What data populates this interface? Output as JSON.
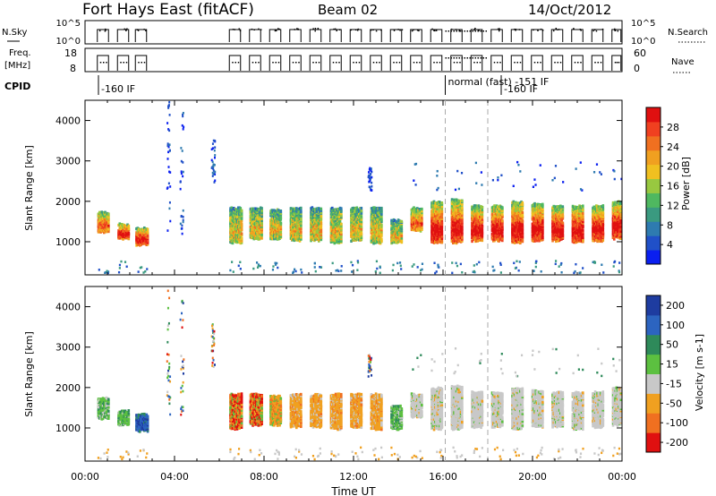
{
  "header": {
    "site": "Fort Hays East (fitACF)",
    "beam": "Beam 02",
    "date": "14/Oct/2012"
  },
  "status_panel": {
    "nsky_label": "N.Sky",
    "nsky_ticks": [
      "10^5",
      "10^0"
    ],
    "nsearch_label": "N.Search",
    "nsearch_ticks": [
      "10^5",
      "10^0"
    ],
    "freq_label_1": "Freq.",
    "freq_label_2": "[MHz]",
    "freq_ticks": [
      "18",
      "8"
    ],
    "nave_label": "Nave",
    "nave_ticks": [
      "60",
      "0"
    ],
    "cpid_label": "CPID",
    "cpid_segments": [
      {
        "text": "-160 IF",
        "start_hour": 0.6
      },
      {
        "text": "normal (fast) -151 IF",
        "start_hour": 16.1
      },
      {
        "text": "-160 IF",
        "start_hour": 18.6
      }
    ]
  },
  "dashed_lines_hours": [
    16.1,
    18.0
  ],
  "x_axis": {
    "label": "Time UT",
    "ticks": [
      "00:00",
      "04:00",
      "08:00",
      "12:00",
      "16:00",
      "20:00",
      "00:00"
    ],
    "range_hours": [
      0,
      24
    ]
  },
  "power_panel": {
    "ylabel": "Slant Range [km]",
    "yticks": [
      "1000",
      "2000",
      "3000",
      "4000"
    ],
    "colorbar_label": "Power [dB]",
    "colorbar_ticks": [
      "4",
      "8",
      "12",
      "16",
      "20",
      "24",
      "28"
    ],
    "colors": [
      "#0a1ff0",
      "#2050c8",
      "#2e7bb0",
      "#3a9a80",
      "#4fb860",
      "#98c840",
      "#f0c020",
      "#f0a020",
      "#f07020",
      "#f04020",
      "#e01010"
    ]
  },
  "velocity_panel": {
    "ylabel": "Slant Range [km]",
    "yticks": [
      "1000",
      "2000",
      "3000",
      "4000"
    ],
    "colorbar_label": "Velocity [m s-1]",
    "colorbar_ticks": [
      "200",
      "100",
      "50",
      "15",
      "-15",
      "-50",
      "-100",
      "-200"
    ],
    "colors": [
      "#1e3ca0",
      "#2c64c0",
      "#2e8a5a",
      "#5cc040",
      "#c8c8c8",
      "#f0a020",
      "#f07020",
      "#e01010"
    ]
  },
  "chart_data": {
    "type": "heatmap",
    "title": "Fort Hays East (fitACF)",
    "xlabel": "Time UT",
    "ylabel": "Slant Range [km]",
    "x_range_hours": [
      0,
      24
    ],
    "y_range_km": [
      180,
      4500
    ],
    "scan_blocks": [
      {
        "t0": 0.55,
        "t1": 1.05,
        "r0": 1250,
        "r1": 1750,
        "power": "mid-high",
        "velocity": "+15..+50"
      },
      {
        "t0": 1.45,
        "t1": 1.95,
        "r0": 1100,
        "r1": 1450,
        "power": "high",
        "velocity": "+15..+50"
      },
      {
        "t0": 2.25,
        "t1": 2.75,
        "r0": 950,
        "r1": 1350,
        "power": "high",
        "velocity": "+100"
      },
      {
        "t0": 6.45,
        "t1": 6.95,
        "r0": 1000,
        "r1": 1850,
        "power": "mid",
        "velocity": "-50..-200"
      },
      {
        "t0": 7.35,
        "t1": 7.85,
        "r0": 1100,
        "r1": 1850,
        "power": "mid",
        "velocity": "-50..-200"
      },
      {
        "t0": 8.25,
        "t1": 8.75,
        "r0": 1100,
        "r1": 1800,
        "power": "mid",
        "velocity": "-50..-100"
      },
      {
        "t0": 9.15,
        "t1": 9.65,
        "r0": 1050,
        "r1": 1850,
        "power": "mid",
        "velocity": "-50"
      },
      {
        "t0": 10.05,
        "t1": 10.55,
        "r0": 1050,
        "r1": 1850,
        "power": "mid",
        "velocity": "-50"
      },
      {
        "t0": 10.95,
        "t1": 11.45,
        "r0": 1000,
        "r1": 1850,
        "power": "mid",
        "velocity": "-50"
      },
      {
        "t0": 11.85,
        "t1": 12.35,
        "r0": 1050,
        "r1": 1850,
        "power": "mid",
        "velocity": "-50"
      },
      {
        "t0": 12.75,
        "t1": 13.25,
        "r0": 1000,
        "r1": 1850,
        "power": "mid",
        "velocity": "-50"
      },
      {
        "t0": 13.65,
        "t1": 14.15,
        "r0": 1000,
        "r1": 1550,
        "power": "mid",
        "velocity": "+15..+50"
      },
      {
        "t0": 14.55,
        "t1": 15.05,
        "r0": 1300,
        "r1": 1850,
        "power": "mid-high",
        "velocity": "~0"
      },
      {
        "t0": 15.45,
        "t1": 15.95,
        "r0": 1000,
        "r1": 2000,
        "power": "high",
        "velocity": "~0"
      },
      {
        "t0": 16.35,
        "t1": 16.85,
        "r0": 1000,
        "r1": 2050,
        "power": "high",
        "velocity": "~0"
      },
      {
        "t0": 17.25,
        "t1": 17.75,
        "r0": 1050,
        "r1": 1900,
        "power": "high",
        "velocity": "~0"
      },
      {
        "t0": 18.15,
        "t1": 18.65,
        "r0": 1050,
        "r1": 1900,
        "power": "high",
        "velocity": "~0"
      },
      {
        "t0": 19.05,
        "t1": 19.55,
        "r0": 1000,
        "r1": 2000,
        "power": "high",
        "velocity": "~0"
      },
      {
        "t0": 19.95,
        "t1": 20.45,
        "r0": 1050,
        "r1": 1950,
        "power": "high",
        "velocity": "~0"
      },
      {
        "t0": 20.85,
        "t1": 21.35,
        "r0": 1050,
        "r1": 1900,
        "power": "high",
        "velocity": "~0"
      },
      {
        "t0": 21.75,
        "t1": 22.25,
        "r0": 1000,
        "r1": 1900,
        "power": "high",
        "velocity": "~0"
      },
      {
        "t0": 22.65,
        "t1": 23.15,
        "r0": 1050,
        "r1": 1900,
        "power": "high",
        "velocity": "~0"
      },
      {
        "t0": 23.55,
        "t1": 23.95,
        "r0": 1100,
        "r1": 2000,
        "power": "high",
        "velocity": "~0"
      }
    ],
    "scatter_columns": [
      {
        "t": 3.7,
        "r0": 1300,
        "r1": 4500
      },
      {
        "t": 4.3,
        "r0": 1200,
        "r1": 4500
      },
      {
        "t": 5.7,
        "r0": 2500,
        "r1": 3600
      },
      {
        "t": 12.7,
        "r0": 2300,
        "r1": 2850
      }
    ]
  }
}
